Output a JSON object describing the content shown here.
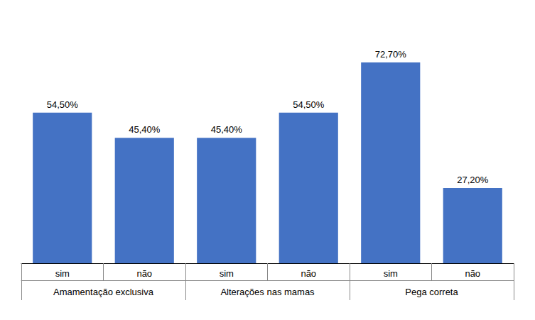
{
  "chart_data": {
    "type": "bar",
    "categories": [
      "sim",
      "não",
      "sim",
      "não",
      "sim",
      "não"
    ],
    "groups": [
      "Amamentação exclusiva",
      "Alterações nas mamas",
      "Pega correta"
    ],
    "values": [
      54.5,
      45.4,
      45.4,
      54.5,
      72.7,
      27.2
    ],
    "value_labels": [
      "54,50%",
      "45,40%",
      "45,40%",
      "54,50%",
      "72,70%",
      "27,20%"
    ],
    "data_labels": true,
    "color": "#4472C4",
    "ylim": [
      0,
      85
    ],
    "tick_labels": "x",
    "grid": false
  }
}
